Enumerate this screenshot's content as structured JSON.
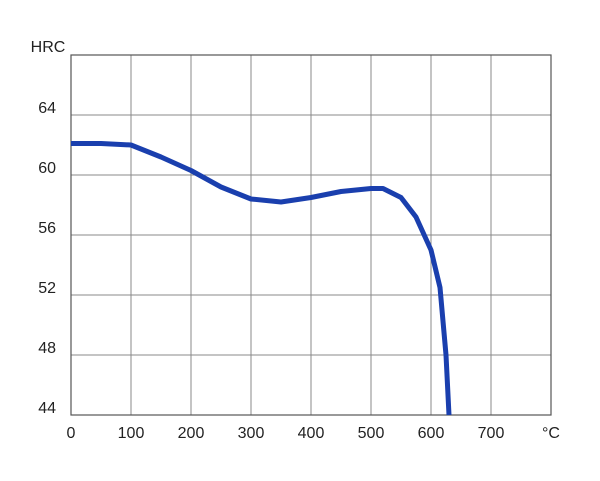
{
  "chart_data": {
    "type": "line",
    "x_label": "°C",
    "y_label": "HRC",
    "x": [
      0,
      50,
      100,
      150,
      200,
      250,
      300,
      350,
      400,
      450,
      500,
      520,
      550,
      575,
      600,
      615,
      625,
      630
    ],
    "series": [
      {
        "color": "#1a3fae",
        "values": [
          62.1,
          62.1,
          62.0,
          61.2,
          60.3,
          59.2,
          58.4,
          58.2,
          58.5,
          58.9,
          59.1,
          59.1,
          58.5,
          57.2,
          55.0,
          52.5,
          48.0,
          44.0
        ]
      }
    ],
    "xlim": [
      0,
      800
    ],
    "xticks": [
      0,
      100,
      200,
      300,
      400,
      500,
      600,
      700
    ],
    "ylim": [
      44,
      68
    ],
    "yticks": [
      44,
      48,
      52,
      56,
      60,
      64
    ],
    "grid": true
  }
}
